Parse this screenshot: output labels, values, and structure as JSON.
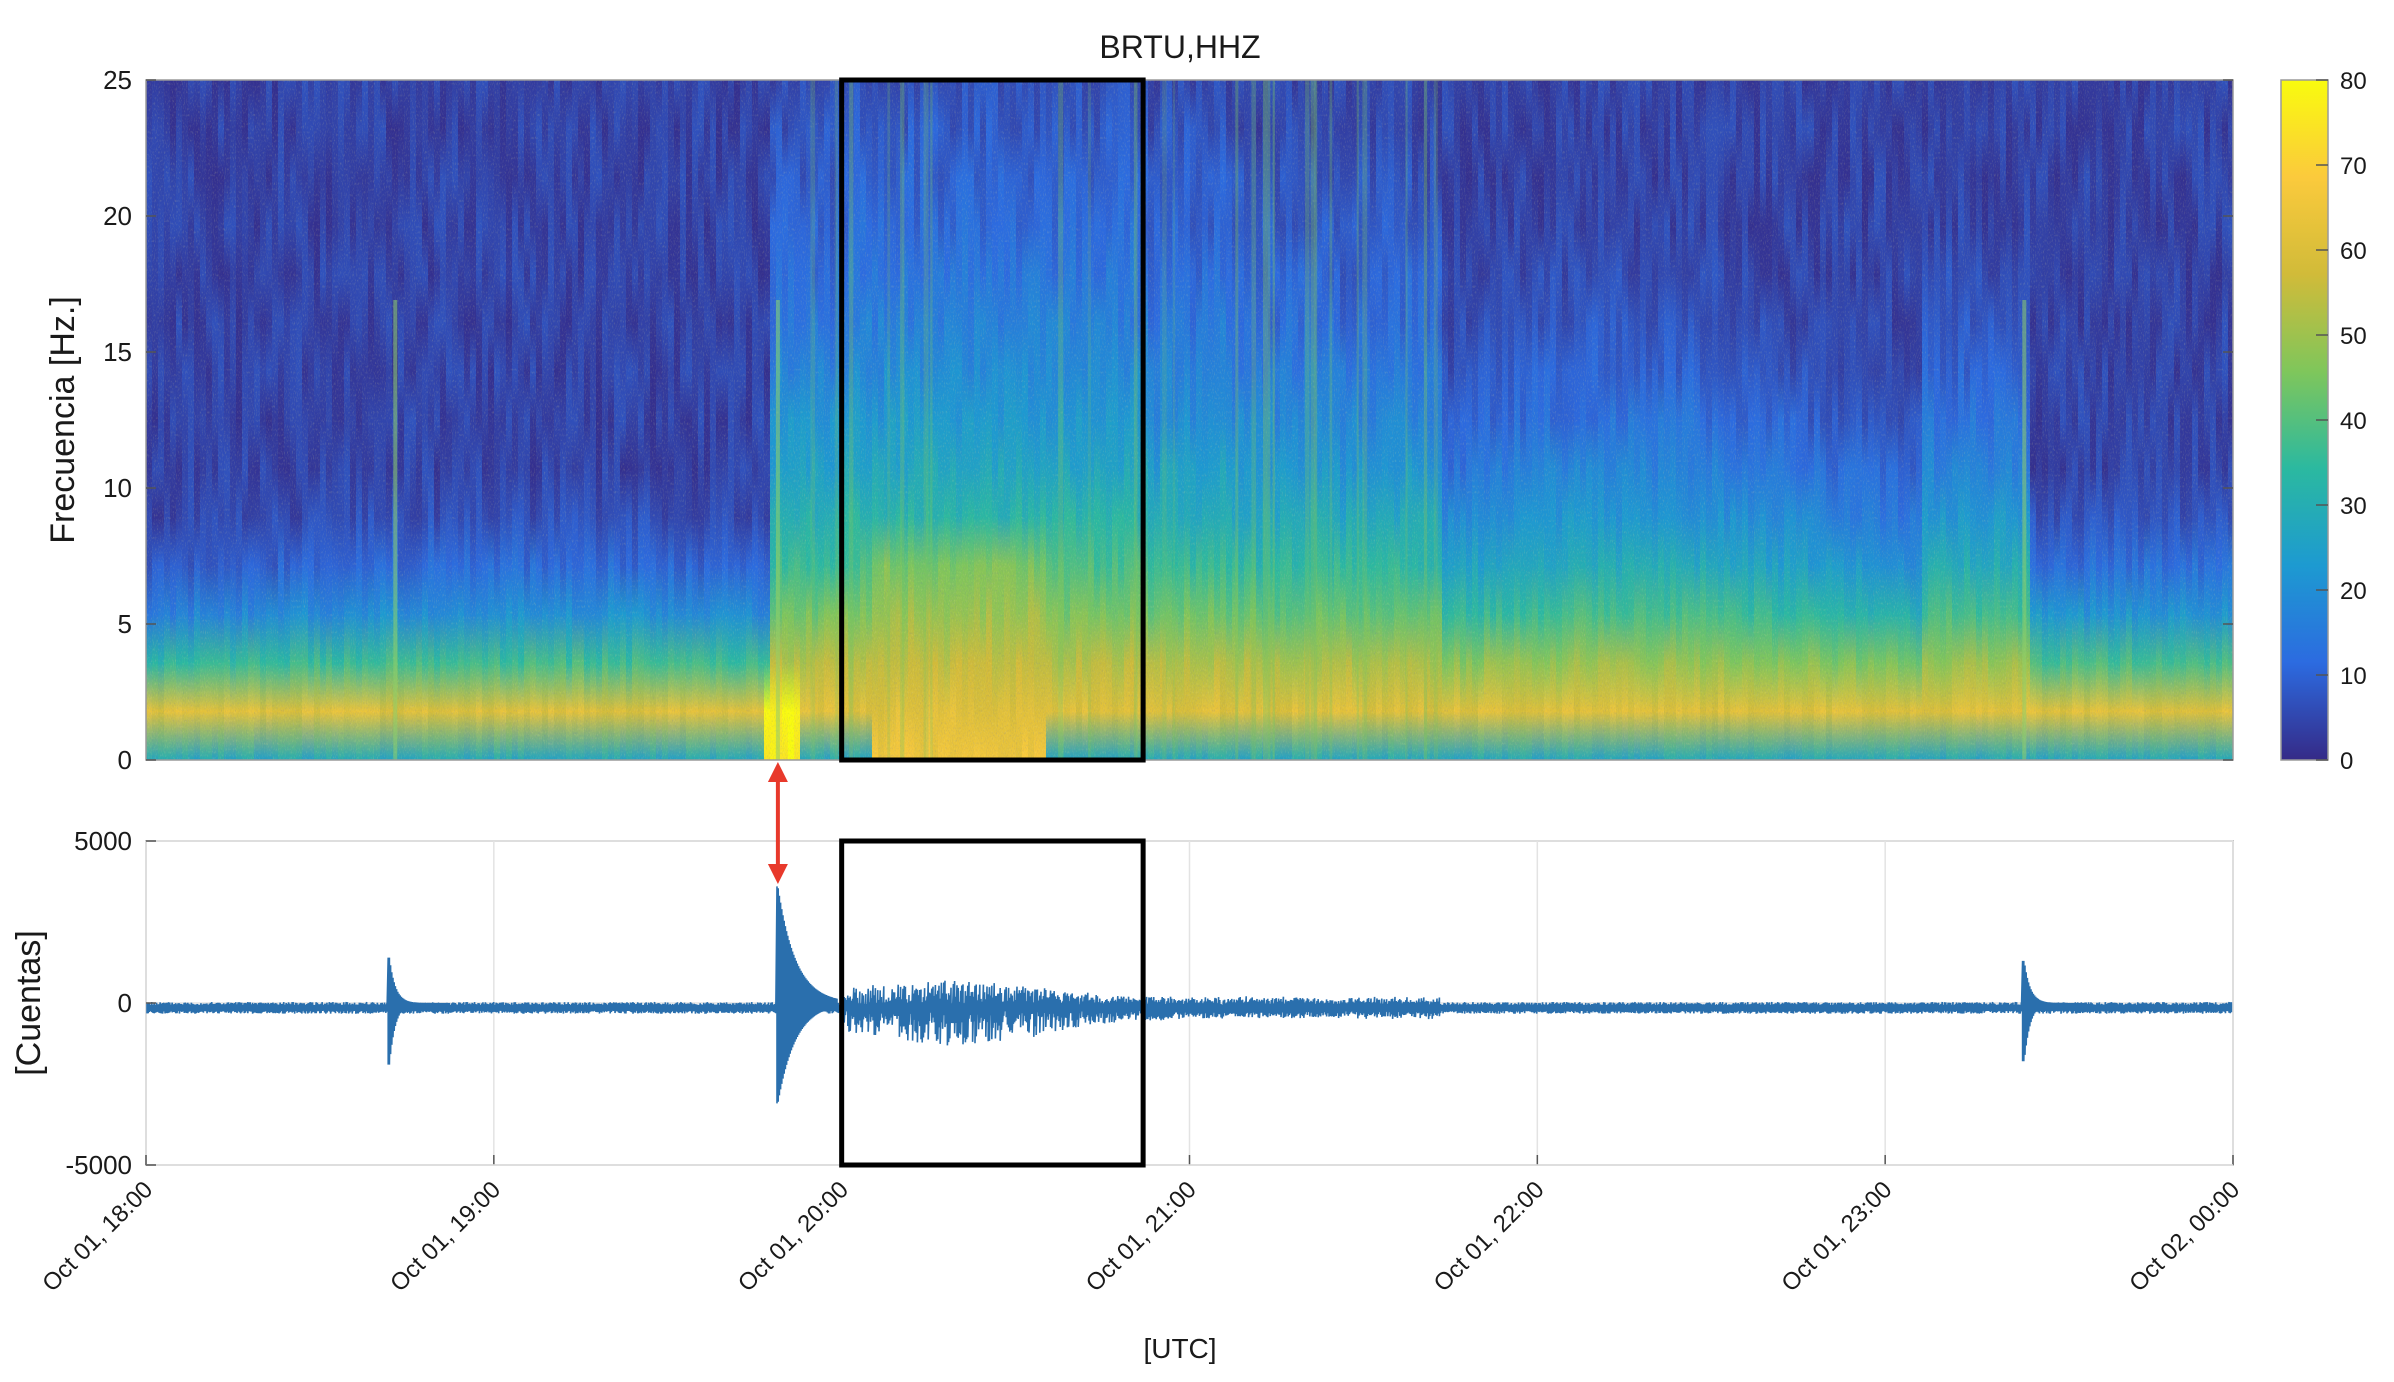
{
  "chart_data": [
    {
      "type": "heatmap",
      "title": "BRTU,HHZ",
      "ylabel": "Frecuencia [Hz.]",
      "ylim": [
        0,
        25
      ],
      "yticks": [
        0,
        5,
        10,
        15,
        20,
        25
      ],
      "ytick_labels": [
        "0",
        "5",
        "10",
        "15",
        "20",
        "25"
      ],
      "x_start": "Oct 01, 18:00",
      "x_end": "Oct 02, 00:00",
      "colorbar": {
        "ticks": [
          0,
          10,
          20,
          30,
          40,
          50,
          60,
          70,
          80
        ],
        "tick_labels": [
          "0",
          "10",
          "20",
          "30",
          "40",
          "50",
          "60",
          "70",
          "80"
        ],
        "range": [
          0,
          80
        ],
        "colors": [
          "#352a87",
          "#2c6be0",
          "#1d9ad1",
          "#2bb9a0",
          "#7fc65b",
          "#d1bb39",
          "#fbca3c",
          "#f9fb0e"
        ]
      },
      "highlight_box": {
        "x_start": "Oct 01, 20:00",
        "x_end": "Oct 01, 20:52",
        "color": "#000000"
      },
      "events": [
        {
          "time": "Oct 01, 18:43",
          "note": "vertical streak"
        },
        {
          "time": "Oct 01, 19:49",
          "note": "strong low-frequency burst"
        },
        {
          "time": "Oct 01, 23:24",
          "note": "vertical streak"
        }
      ]
    },
    {
      "type": "line",
      "ylabel": "[Cuentas]",
      "xlabel": "[UTC]",
      "ylim": [
        -5000,
        5000
      ],
      "yticks": [
        -5000,
        0,
        5000
      ],
      "ytick_labels": [
        "-5000",
        "0",
        "5000"
      ],
      "x_tick_labels": [
        "Oct 01, 18:00",
        "Oct 01, 19:00",
        "Oct 01, 20:00",
        "Oct 01, 21:00",
        "Oct 01, 22:00",
        "Oct 01, 23:00",
        "Oct 02, 00:00"
      ],
      "series_color": "#2a6fad",
      "baseline": -150,
      "noise_amplitude": 150,
      "peaks": [
        {
          "time": "Oct 01, 18:42",
          "max": 1400,
          "min": -1900
        },
        {
          "time": "Oct 01, 19:49",
          "max": 3600,
          "min": -3100
        },
        {
          "time": "Oct 01, 20:24",
          "max": 650,
          "min": -1100
        },
        {
          "time": "Oct 01, 23:24",
          "max": 1300,
          "min": -1800
        }
      ],
      "highlight_box": {
        "x_start": "Oct 01, 20:00",
        "x_end": "Oct 01, 20:52",
        "color": "#000000"
      }
    }
  ],
  "annotation_arrow": {
    "time": "Oct 01, 19:49",
    "color": "#e8392b"
  }
}
